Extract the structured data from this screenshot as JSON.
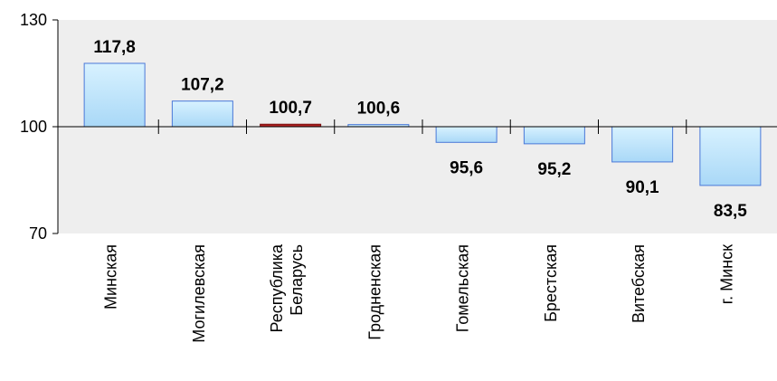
{
  "chart_data": {
    "type": "bar",
    "title": "",
    "xlabel": "",
    "ylabel": "",
    "baseline": 100,
    "ylim": [
      70,
      130
    ],
    "yticks": [
      70,
      100,
      130
    ],
    "grid": false,
    "categories": [
      "Минская",
      "Могилевская",
      "Республика\nБеларусь",
      "Гродненская",
      "Гомельская",
      "Брестская",
      "Витебская",
      "г. Минск"
    ],
    "values": [
      117.8,
      107.2,
      100.7,
      100.6,
      95.6,
      95.2,
      90.1,
      83.5
    ],
    "value_labels": [
      "117,8",
      "107,2",
      "100,7",
      "100,6",
      "95,6",
      "95,2",
      "90,1",
      "83,5"
    ],
    "colors": {
      "bar_fill_top": "#d8f2ff",
      "bar_fill_bottom": "#a9d8f7",
      "bar_stroke": "#4a78d8",
      "highlight_fill": "#b22222",
      "highlight_stroke": "#7a1010",
      "plot_background": "#eeeeee"
    },
    "highlight_index": 2
  }
}
